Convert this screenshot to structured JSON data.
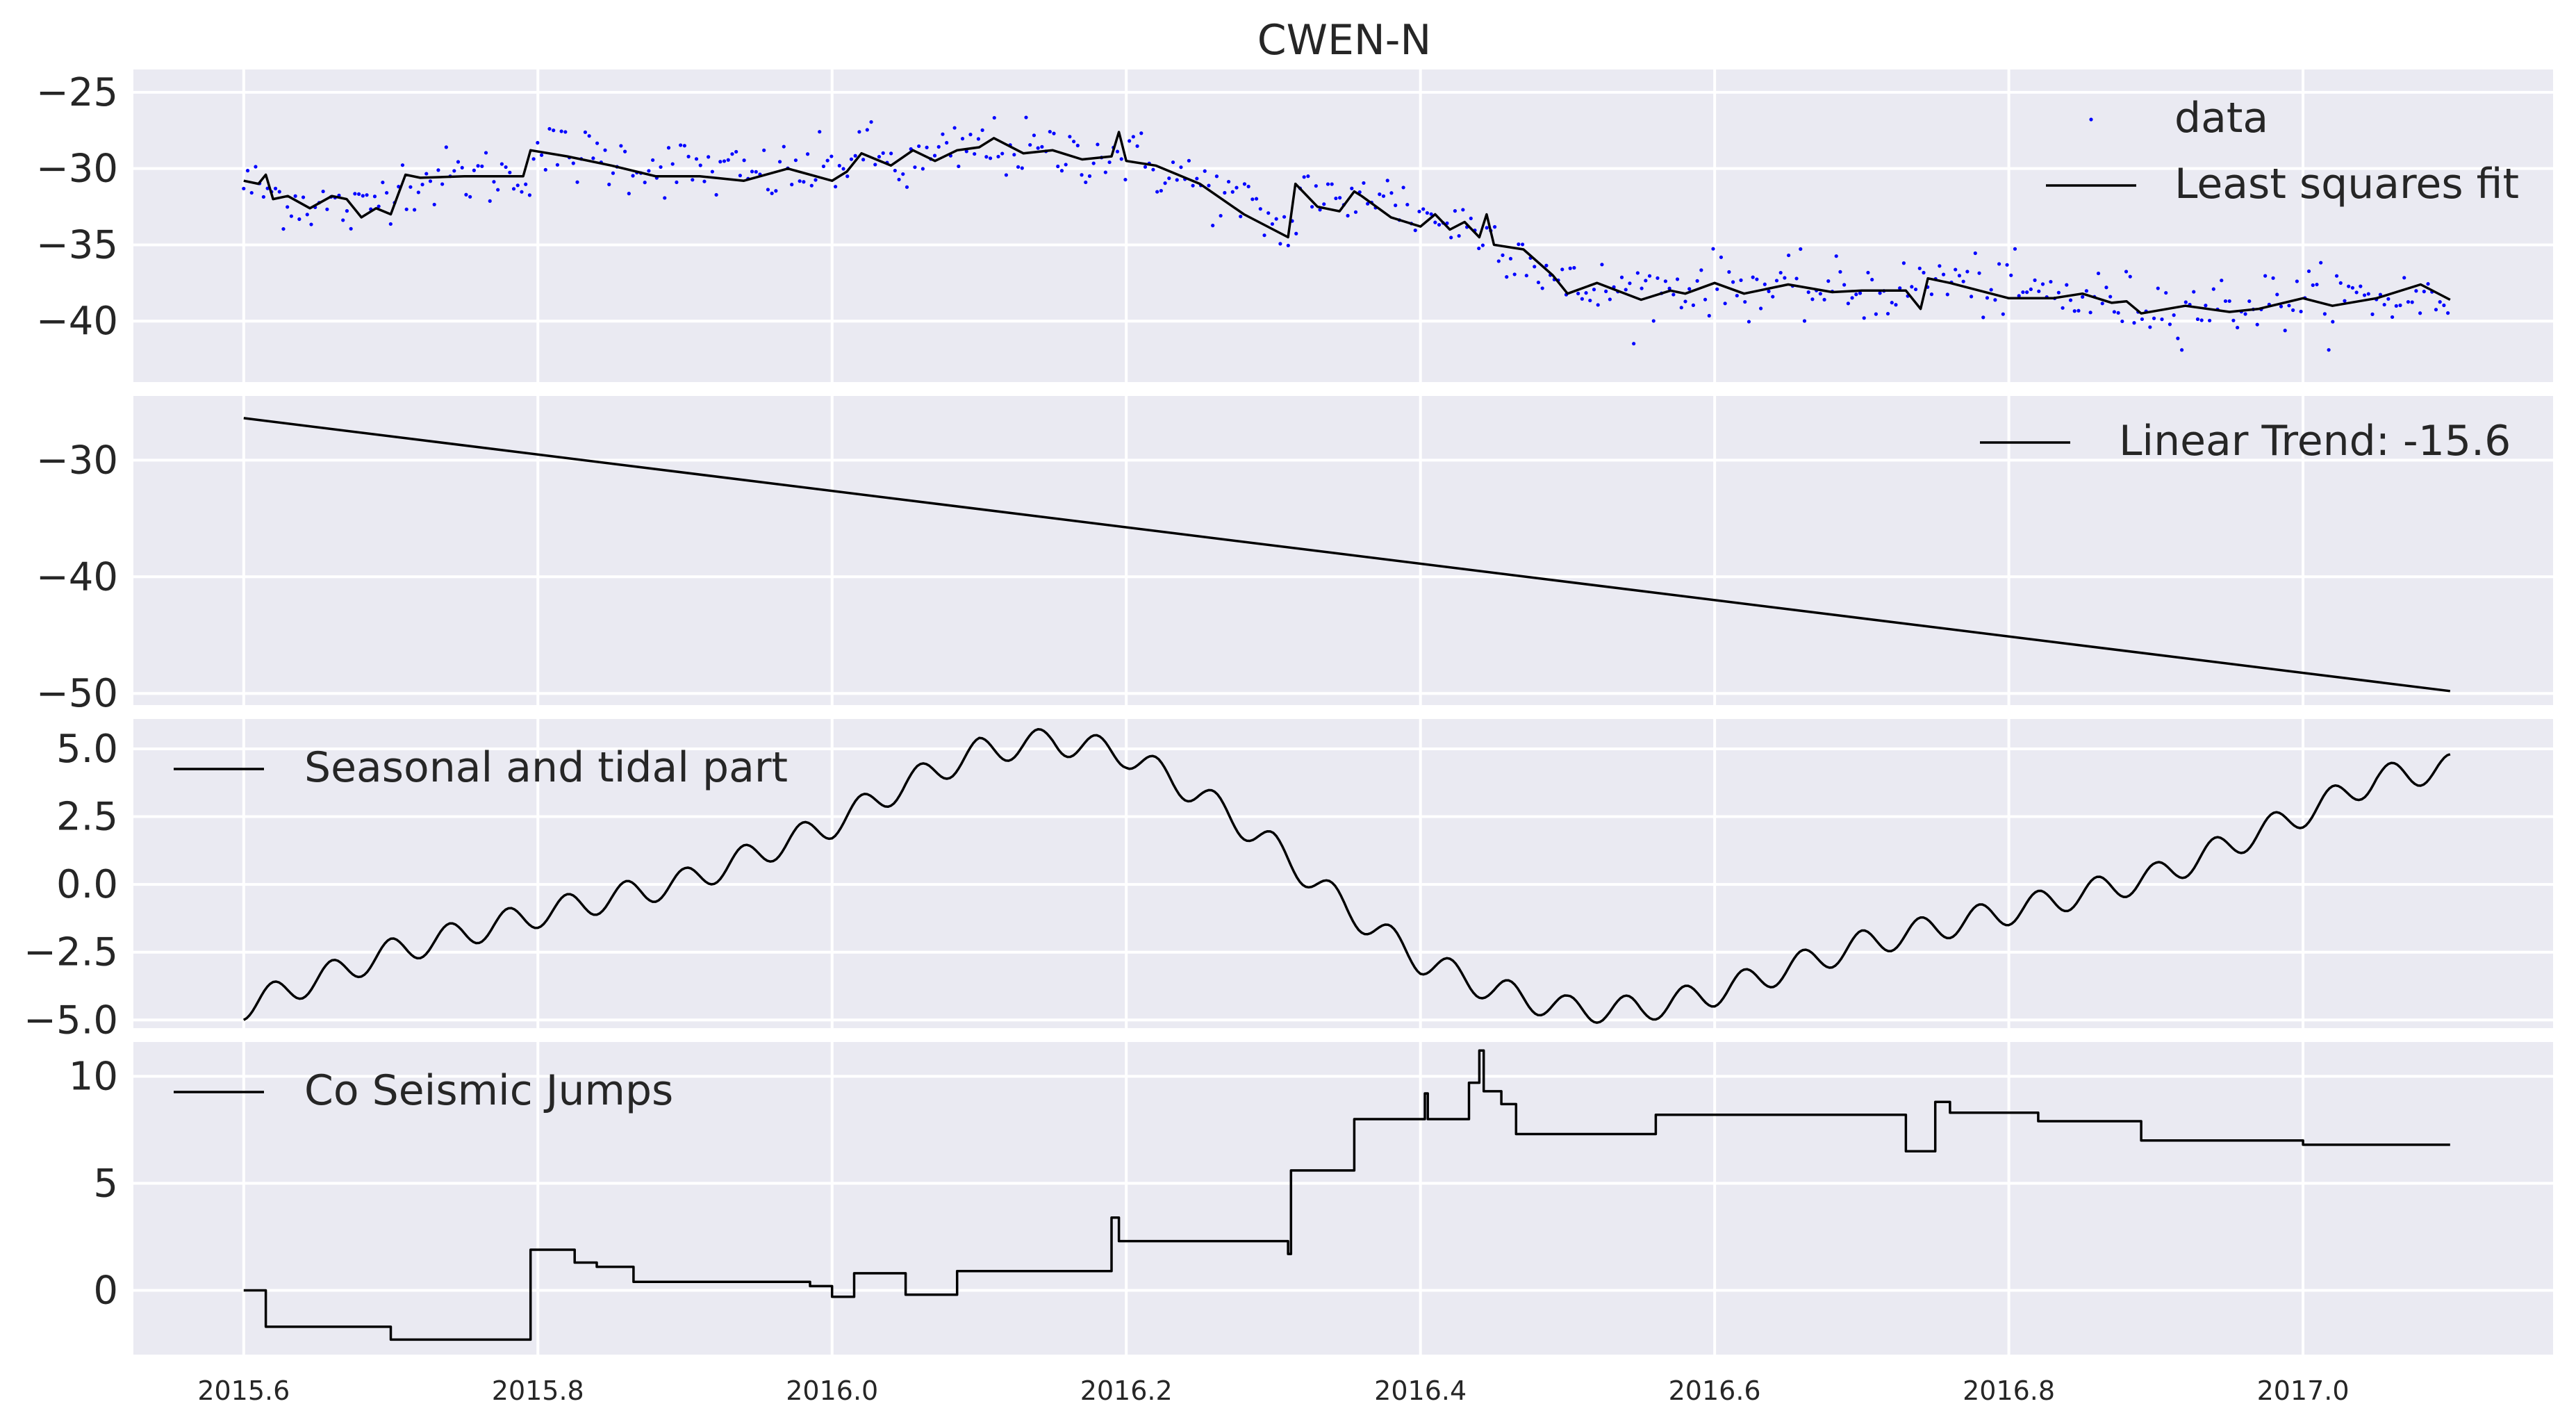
{
  "figure": {
    "title": "CWEN-N"
  },
  "chart_data": [
    {
      "type": "scatter+line",
      "title": "CWEN-N",
      "xlabel": "",
      "ylabel": "",
      "xlim": [
        2015.525,
        2017.17
      ],
      "ylim": [
        -44,
        -23.5
      ],
      "yticks": [
        -25,
        -30,
        -35,
        -40
      ],
      "ytick_labels": [
        "−25",
        "−30",
        "−35",
        "−40"
      ],
      "grid": true,
      "legend_position": "top-right",
      "series": [
        {
          "name": "data",
          "style": "points",
          "color": "#0000ff",
          "anchors": [
            [
              2015.6,
              -31.0
            ],
            [
              2015.63,
              -32.0
            ],
            [
              2015.66,
              -32.5
            ],
            [
              2015.68,
              -33.0
            ],
            [
              2015.7,
              -31.0
            ],
            [
              2015.75,
              -30.5
            ],
            [
              2015.79,
              -30.5
            ],
            [
              2015.8,
              -28.8
            ],
            [
              2015.85,
              -29.5
            ],
            [
              2015.95,
              -30.5
            ],
            [
              2016.0,
              -30.0
            ],
            [
              2016.02,
              -28.8
            ],
            [
              2016.05,
              -30.0
            ],
            [
              2016.1,
              -28.5
            ],
            [
              2016.15,
              -29.0
            ],
            [
              2016.19,
              -29.0
            ],
            [
              2016.2,
              -29.2
            ],
            [
              2016.25,
              -31.0
            ],
            [
              2016.3,
              -33.5
            ],
            [
              2016.31,
              -34.5
            ],
            [
              2016.32,
              -31.0
            ],
            [
              2016.35,
              -33.0
            ],
            [
              2016.36,
              -31.0
            ],
            [
              2016.4,
              -33.0
            ],
            [
              2016.44,
              -34.0
            ],
            [
              2016.47,
              -35.5
            ],
            [
              2016.5,
              -38.0
            ],
            [
              2016.55,
              -38.0
            ],
            [
              2016.6,
              -37.5
            ],
            [
              2016.65,
              -38.0
            ],
            [
              2016.73,
              -38.0
            ],
            [
              2016.75,
              -37.2
            ],
            [
              2016.8,
              -38.0
            ],
            [
              2016.85,
              -38.5
            ],
            [
              2016.9,
              -39.0
            ],
            [
              2016.95,
              -39.0
            ],
            [
              2017.0,
              -38.5
            ],
            [
              2017.05,
              -38.5
            ],
            [
              2017.1,
              -38.5
            ]
          ],
          "noise_sd": 1.0,
          "spacing_years": 0.0027
        },
        {
          "name": "Least squares fit",
          "style": "line",
          "color": "#000000",
          "x": [
            2015.6,
            2015.61,
            2015.615,
            2015.62,
            2015.63,
            2015.645,
            2015.66,
            2015.67,
            2015.68,
            2015.69,
            2015.7,
            2015.71,
            2015.72,
            2015.75,
            2015.79,
            2015.795,
            2015.82,
            2015.85,
            2015.88,
            2015.91,
            2015.94,
            2015.97,
            2016.0,
            2016.01,
            2016.02,
            2016.04,
            2016.055,
            2016.07,
            2016.085,
            2016.1,
            2016.11,
            2016.13,
            2016.15,
            2016.17,
            2016.19,
            2016.195,
            2016.2,
            2016.22,
            2016.25,
            2016.28,
            2016.31,
            2016.315,
            2016.32,
            2016.33,
            2016.345,
            2016.355,
            2016.36,
            2016.38,
            2016.4,
            2016.41,
            2016.42,
            2016.43,
            2016.44,
            2016.445,
            2016.45,
            2016.47,
            2016.49,
            2016.5,
            2016.52,
            2016.55,
            2016.57,
            2016.58,
            2016.6,
            2016.62,
            2016.65,
            2016.68,
            2016.7,
            2016.72,
            2016.73,
            2016.74,
            2016.745,
            2016.76,
            2016.78,
            2016.8,
            2016.83,
            2016.85,
            2016.87,
            2016.88,
            2016.89,
            2016.92,
            2016.95,
            2016.97,
            2017.0,
            2017.02,
            2017.05,
            2017.08,
            2017.1
          ],
          "y": [
            -30.8,
            -31.0,
            -30.4,
            -32.0,
            -31.8,
            -32.6,
            -31.8,
            -32.0,
            -33.2,
            -32.6,
            -33.0,
            -30.4,
            -30.6,
            -30.5,
            -30.5,
            -28.8,
            -29.2,
            -29.8,
            -30.5,
            -30.5,
            -30.8,
            -30.0,
            -30.8,
            -30.2,
            -29.0,
            -29.8,
            -28.8,
            -29.5,
            -28.8,
            -28.6,
            -28.0,
            -29.0,
            -28.8,
            -29.4,
            -29.2,
            -27.6,
            -29.5,
            -29.8,
            -31.0,
            -33.0,
            -34.5,
            -31.0,
            -31.5,
            -32.5,
            -32.8,
            -31.5,
            -31.8,
            -33.2,
            -33.8,
            -33.0,
            -34.0,
            -33.5,
            -34.5,
            -33.0,
            -35.0,
            -35.3,
            -37.0,
            -38.2,
            -37.5,
            -38.6,
            -38.0,
            -38.2,
            -37.5,
            -38.2,
            -37.6,
            -38.1,
            -38.0,
            -38.0,
            -38.0,
            -39.2,
            -37.2,
            -37.5,
            -38.0,
            -38.5,
            -38.5,
            -38.2,
            -38.8,
            -38.7,
            -39.5,
            -39.0,
            -39.4,
            -39.2,
            -38.5,
            -39.0,
            -38.5,
            -37.6,
            -38.6
          ]
        }
      ]
    },
    {
      "type": "line",
      "xlabel": "",
      "ylabel": "",
      "xlim": [
        2015.525,
        2017.17
      ],
      "ylim": [
        -51,
        -24.5
      ],
      "yticks": [
        -30,
        -40,
        -50
      ],
      "ytick_labels": [
        "−30",
        "−40",
        "−50"
      ],
      "grid": true,
      "legend_position": "top-right",
      "series": [
        {
          "name": "Linear Trend: -15.6",
          "color": "#000000",
          "x": [
            2015.6,
            2017.1
          ],
          "y": [
            -26.4,
            -49.8
          ]
        }
      ]
    },
    {
      "type": "line",
      "xlabel": "",
      "ylabel": "",
      "xlim": [
        2015.525,
        2017.17
      ],
      "ylim": [
        -5.3,
        6.1
      ],
      "yticks": [
        5.0,
        2.5,
        0.0,
        -2.5,
        -5.0
      ],
      "ytick_labels": [
        "5.0",
        "2.5",
        "0.0",
        "−2.5",
        "−5.0"
      ],
      "grid": true,
      "legend_position": "top-left",
      "series": [
        {
          "name": "Seasonal and tidal part",
          "color": "#000000",
          "x": [
            2015.6,
            2015.7,
            2015.8,
            2015.9,
            2016.0,
            2016.05,
            2016.1,
            2016.15,
            2016.2,
            2016.25,
            2016.3,
            2016.35,
            2016.4,
            2016.45,
            2016.5,
            2016.55,
            2016.6,
            2016.65,
            2016.7,
            2016.8,
            2016.9,
            2017.0,
            2017.05,
            2017.1
          ],
          "y": [
            -4.5,
            -2.5,
            -1.1,
            0.1,
            2.2,
            3.7,
            4.9,
            5.3,
            4.8,
            3.3,
            1.4,
            -0.9,
            -2.8,
            -3.9,
            -4.6,
            -4.6,
            -4.0,
            -3.1,
            -2.2,
            -1.0,
            0.3,
            2.6,
            3.9,
            4.3
          ],
          "ripple_amplitude": 0.5,
          "ripple_period_years": 0.04
        }
      ]
    },
    {
      "type": "line",
      "xlabel": "",
      "ylabel": "",
      "xlim": [
        2015.525,
        2017.17
      ],
      "ylim": [
        -3.0,
        11.6
      ],
      "yticks": [
        10,
        5,
        0
      ],
      "ytick_labels": [
        "10",
        "5",
        "0"
      ],
      "xticks": [
        2015.6,
        2015.8,
        2016.0,
        2016.2,
        2016.4,
        2016.6,
        2016.8,
        2017.0
      ],
      "xtick_labels": [
        "2015.6",
        "2015.8",
        "2016.0",
        "2016.2",
        "2016.4",
        "2016.6",
        "2016.8",
        "2017.0"
      ],
      "grid": true,
      "legend_position": "top-left",
      "series": [
        {
          "name": "Co Seismic Jumps",
          "color": "#000000",
          "step": true,
          "x": [
            2015.6,
            2015.61,
            2015.615,
            2015.67,
            2015.7,
            2015.795,
            2015.825,
            2015.835,
            2015.84,
            2015.865,
            2015.87,
            2015.905,
            2015.94,
            2015.985,
            2016.0,
            2016.005,
            2016.015,
            2016.025,
            2016.05,
            2016.085,
            2016.19,
            2016.195,
            2016.2,
            2016.31,
            2016.312,
            2016.315,
            2016.355,
            2016.4,
            2016.403,
            2016.405,
            2016.43,
            2016.433,
            2016.437,
            2016.44,
            2016.443,
            2016.445,
            2016.448,
            2016.455,
            2016.46,
            2016.465,
            2016.47,
            2016.48,
            2016.505,
            2016.535,
            2016.56,
            2016.64,
            2016.73,
            2016.745,
            2016.75,
            2016.76,
            2016.8,
            2016.82,
            2016.87,
            2016.89,
            2016.92,
            2016.985,
            2017.0,
            2017.1
          ],
          "y": [
            0.0,
            0.0,
            -1.7,
            -1.7,
            -2.3,
            1.9,
            1.3,
            1.3,
            1.1,
            0.4,
            0.4,
            0.4,
            0.4,
            0.2,
            -0.3,
            -0.3,
            0.8,
            0.8,
            -0.2,
            0.9,
            3.4,
            2.3,
            2.3,
            1.7,
            5.6,
            5.6,
            8.0,
            8.0,
            9.2,
            8.0,
            8.0,
            9.7,
            9.7,
            11.2,
            9.3,
            9.3,
            9.3,
            8.7,
            8.7,
            7.3,
            7.3,
            7.3,
            7.3,
            7.3,
            8.2,
            8.2,
            6.5,
            6.5,
            8.8,
            8.3,
            8.3,
            7.9,
            7.9,
            7.0,
            7.0,
            7.0,
            6.8,
            6.8
          ]
        }
      ]
    }
  ]
}
